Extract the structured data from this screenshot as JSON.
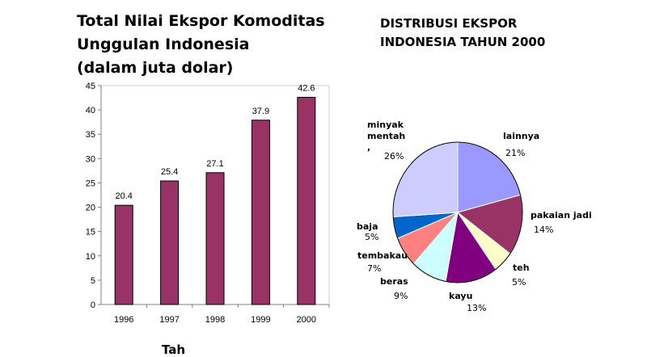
{
  "chart_data": [
    {
      "type": "bar",
      "title_lines": [
        "Total Nilai Ekspor Komoditas",
        "Unggulan Indonesia",
        "(dalam juta dolar)"
      ],
      "categories": [
        "1996",
        "1997",
        "1998",
        "1999",
        "2000"
      ],
      "values": [
        20.4,
        25.4,
        27.1,
        37.9,
        42.6
      ],
      "value_labels": [
        "20.4",
        "25.4",
        "27.1",
        "37.9",
        "42.6"
      ],
      "ylim": [
        0,
        45
      ],
      "yticks": [
        "0",
        "5",
        "10",
        "15",
        "20",
        "25",
        "30",
        "35",
        "40",
        "45"
      ],
      "xlabel_partial": "Tah",
      "grid": false,
      "bar_color": "#993366"
    },
    {
      "type": "pie",
      "title_lines": [
        "DISTRIBUSI EKSPOR",
        "INDONESIA TAHUN 2000"
      ],
      "slices": [
        {
          "label": "lainnya",
          "value": 21,
          "pct": "21%",
          "color": "#9999FF"
        },
        {
          "label": "pakaian jadi",
          "value": 14,
          "pct": "14%",
          "color": "#993366"
        },
        {
          "label": "teh",
          "value": 5,
          "pct": "5%",
          "color": "#FFFFCC"
        },
        {
          "label": "kayu",
          "value": 13,
          "pct": "13%",
          "color": "#800080"
        },
        {
          "label": "beras",
          "value": 9,
          "pct": "9%",
          "color": "#CCFFFF"
        },
        {
          "label": "tembakau",
          "value": 7,
          "pct": "7%",
          "color": "#FF8080"
        },
        {
          "label": "baja",
          "value": 5,
          "pct": "5%",
          "color": "#0066CC"
        },
        {
          "label": "minyak mentah",
          "label_lines": [
            "minyak",
            "mentah",
            ","
          ],
          "value": 26,
          "pct": "26%",
          "color": "#CCCCFF"
        }
      ]
    }
  ]
}
